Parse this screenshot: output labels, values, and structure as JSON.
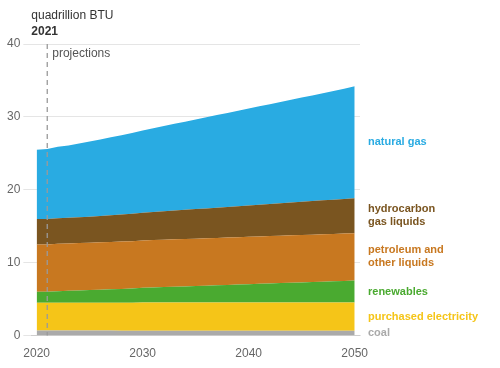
{
  "chart_data": {
    "type": "area",
    "stacked": true,
    "grid": true,
    "ylabel": "quadrillion BTU",
    "annotations": [
      "2021",
      "projections"
    ],
    "vline": 2021,
    "x": [
      2020,
      2021,
      2022,
      2023,
      2024,
      2025,
      2026,
      2027,
      2028,
      2029,
      2030,
      2031,
      2032,
      2033,
      2034,
      2035,
      2036,
      2037,
      2038,
      2039,
      2040,
      2041,
      2042,
      2043,
      2044,
      2045,
      2046,
      2047,
      2048,
      2049,
      2050
    ],
    "xlim": [
      2019.5,
      2050.5
    ],
    "xticks": [
      2020,
      2030,
      2040,
      2050
    ],
    "ylim": [
      0,
      40
    ],
    "yticks": [
      0,
      10,
      20,
      30,
      40
    ],
    "series": [
      {
        "name": "coal",
        "color": "#aaaaaa",
        "values": [
          0.7,
          0.7,
          0.7,
          0.7,
          0.7,
          0.7,
          0.7,
          0.7,
          0.65,
          0.65,
          0.65,
          0.65,
          0.65,
          0.65,
          0.65,
          0.65,
          0.65,
          0.65,
          0.65,
          0.65,
          0.65,
          0.65,
          0.65,
          0.65,
          0.65,
          0.65,
          0.65,
          0.65,
          0.65,
          0.65,
          0.65
        ]
      },
      {
        "name": "purchased electricity",
        "color": "#f5c518",
        "values": [
          3.8,
          3.8,
          3.8,
          3.8,
          3.8,
          3.8,
          3.8,
          3.8,
          3.85,
          3.85,
          3.9,
          3.9,
          3.9,
          3.9,
          3.9,
          3.9,
          3.9,
          3.9,
          3.9,
          3.9,
          3.9,
          3.9,
          3.9,
          3.9,
          3.9,
          3.9,
          3.9,
          3.9,
          3.9,
          3.9,
          3.9
        ]
      },
      {
        "name": "renewables",
        "color": "#4aaa30",
        "values": [
          1.5,
          1.5,
          1.6,
          1.65,
          1.7,
          1.75,
          1.8,
          1.85,
          1.9,
          1.95,
          2.0,
          2.05,
          2.1,
          2.15,
          2.2,
          2.25,
          2.3,
          2.35,
          2.4,
          2.45,
          2.5,
          2.55,
          2.6,
          2.65,
          2.7,
          2.75,
          2.8,
          2.85,
          2.9,
          2.95,
          3.0
        ]
      },
      {
        "name": "petroleum and\nother liquids",
        "color": "#c87820",
        "values": [
          6.5,
          6.5,
          6.5,
          6.5,
          6.5,
          6.5,
          6.5,
          6.5,
          6.5,
          6.5,
          6.5,
          6.5,
          6.5,
          6.5,
          6.5,
          6.5,
          6.5,
          6.5,
          6.5,
          6.5,
          6.5,
          6.5,
          6.5,
          6.5,
          6.5,
          6.5,
          6.5,
          6.5,
          6.5,
          6.5,
          6.5
        ]
      },
      {
        "name": "hydrocarbon\ngas liquids",
        "color": "#7a5520",
        "values": [
          3.5,
          3.5,
          3.5,
          3.52,
          3.54,
          3.56,
          3.6,
          3.65,
          3.7,
          3.75,
          3.8,
          3.85,
          3.9,
          3.95,
          4.0,
          4.05,
          4.1,
          4.15,
          4.2,
          4.25,
          4.3,
          4.35,
          4.4,
          4.45,
          4.5,
          4.55,
          4.6,
          4.65,
          4.7,
          4.75,
          4.8
        ]
      },
      {
        "name": "natural gas",
        "color": "#29abe2",
        "values": [
          9.5,
          9.6,
          9.8,
          9.9,
          10.1,
          10.3,
          10.5,
          10.7,
          10.9,
          11.1,
          11.3,
          11.5,
          11.7,
          11.9,
          12.1,
          12.3,
          12.5,
          12.7,
          12.9,
          13.1,
          13.3,
          13.5,
          13.7,
          13.9,
          14.1,
          14.3,
          14.5,
          14.7,
          14.9,
          15.1,
          15.35
        ]
      }
    ]
  }
}
